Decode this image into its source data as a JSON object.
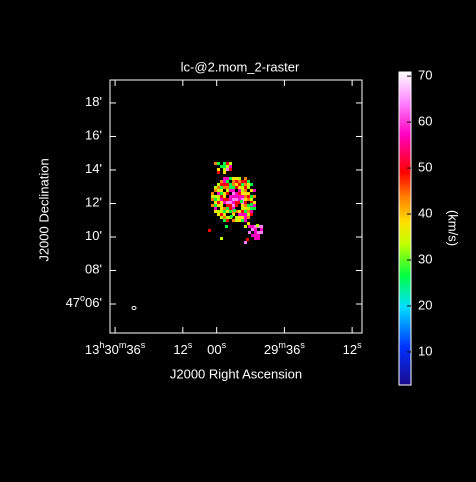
{
  "title": "lc-@2.mom_2-raster",
  "x_axis": {
    "label": "J2000 Right Ascension",
    "lim": [
      97.8,
      8.5
    ],
    "ticks": [
      {
        "value": 96,
        "parts": [
          "13",
          "h",
          "30",
          "m",
          "36",
          "s"
        ]
      },
      {
        "value": 72,
        "parts": [
          "12",
          "s"
        ]
      },
      {
        "value": 60,
        "parts": [
          "00",
          "s"
        ]
      },
      {
        "value": 36,
        "parts": [
          "29",
          "m",
          "36",
          "s"
        ]
      },
      {
        "value": 12,
        "parts": [
          "12",
          "s"
        ]
      }
    ]
  },
  "y_axis": {
    "label": "J2000 Declination",
    "lim": [
      4.27,
      19.37
    ],
    "ticks": [
      {
        "value": 18,
        "parts": [
          "18'"
        ]
      },
      {
        "value": 16,
        "parts": [
          "16'"
        ]
      },
      {
        "value": 14,
        "parts": [
          "14'"
        ]
      },
      {
        "value": 12,
        "parts": [
          "12'"
        ]
      },
      {
        "value": 10,
        "parts": [
          "10'"
        ]
      },
      {
        "value": 8,
        "parts": [
          "08'"
        ]
      },
      {
        "value": 6,
        "parts": [
          "47",
          "o",
          "06'"
        ]
      }
    ]
  },
  "colorbar": {
    "label": "(km/s)",
    "lim": [
      2.8,
      70.9
    ],
    "ticks": [
      10,
      20,
      30,
      40,
      50,
      60,
      70
    ]
  }
}
